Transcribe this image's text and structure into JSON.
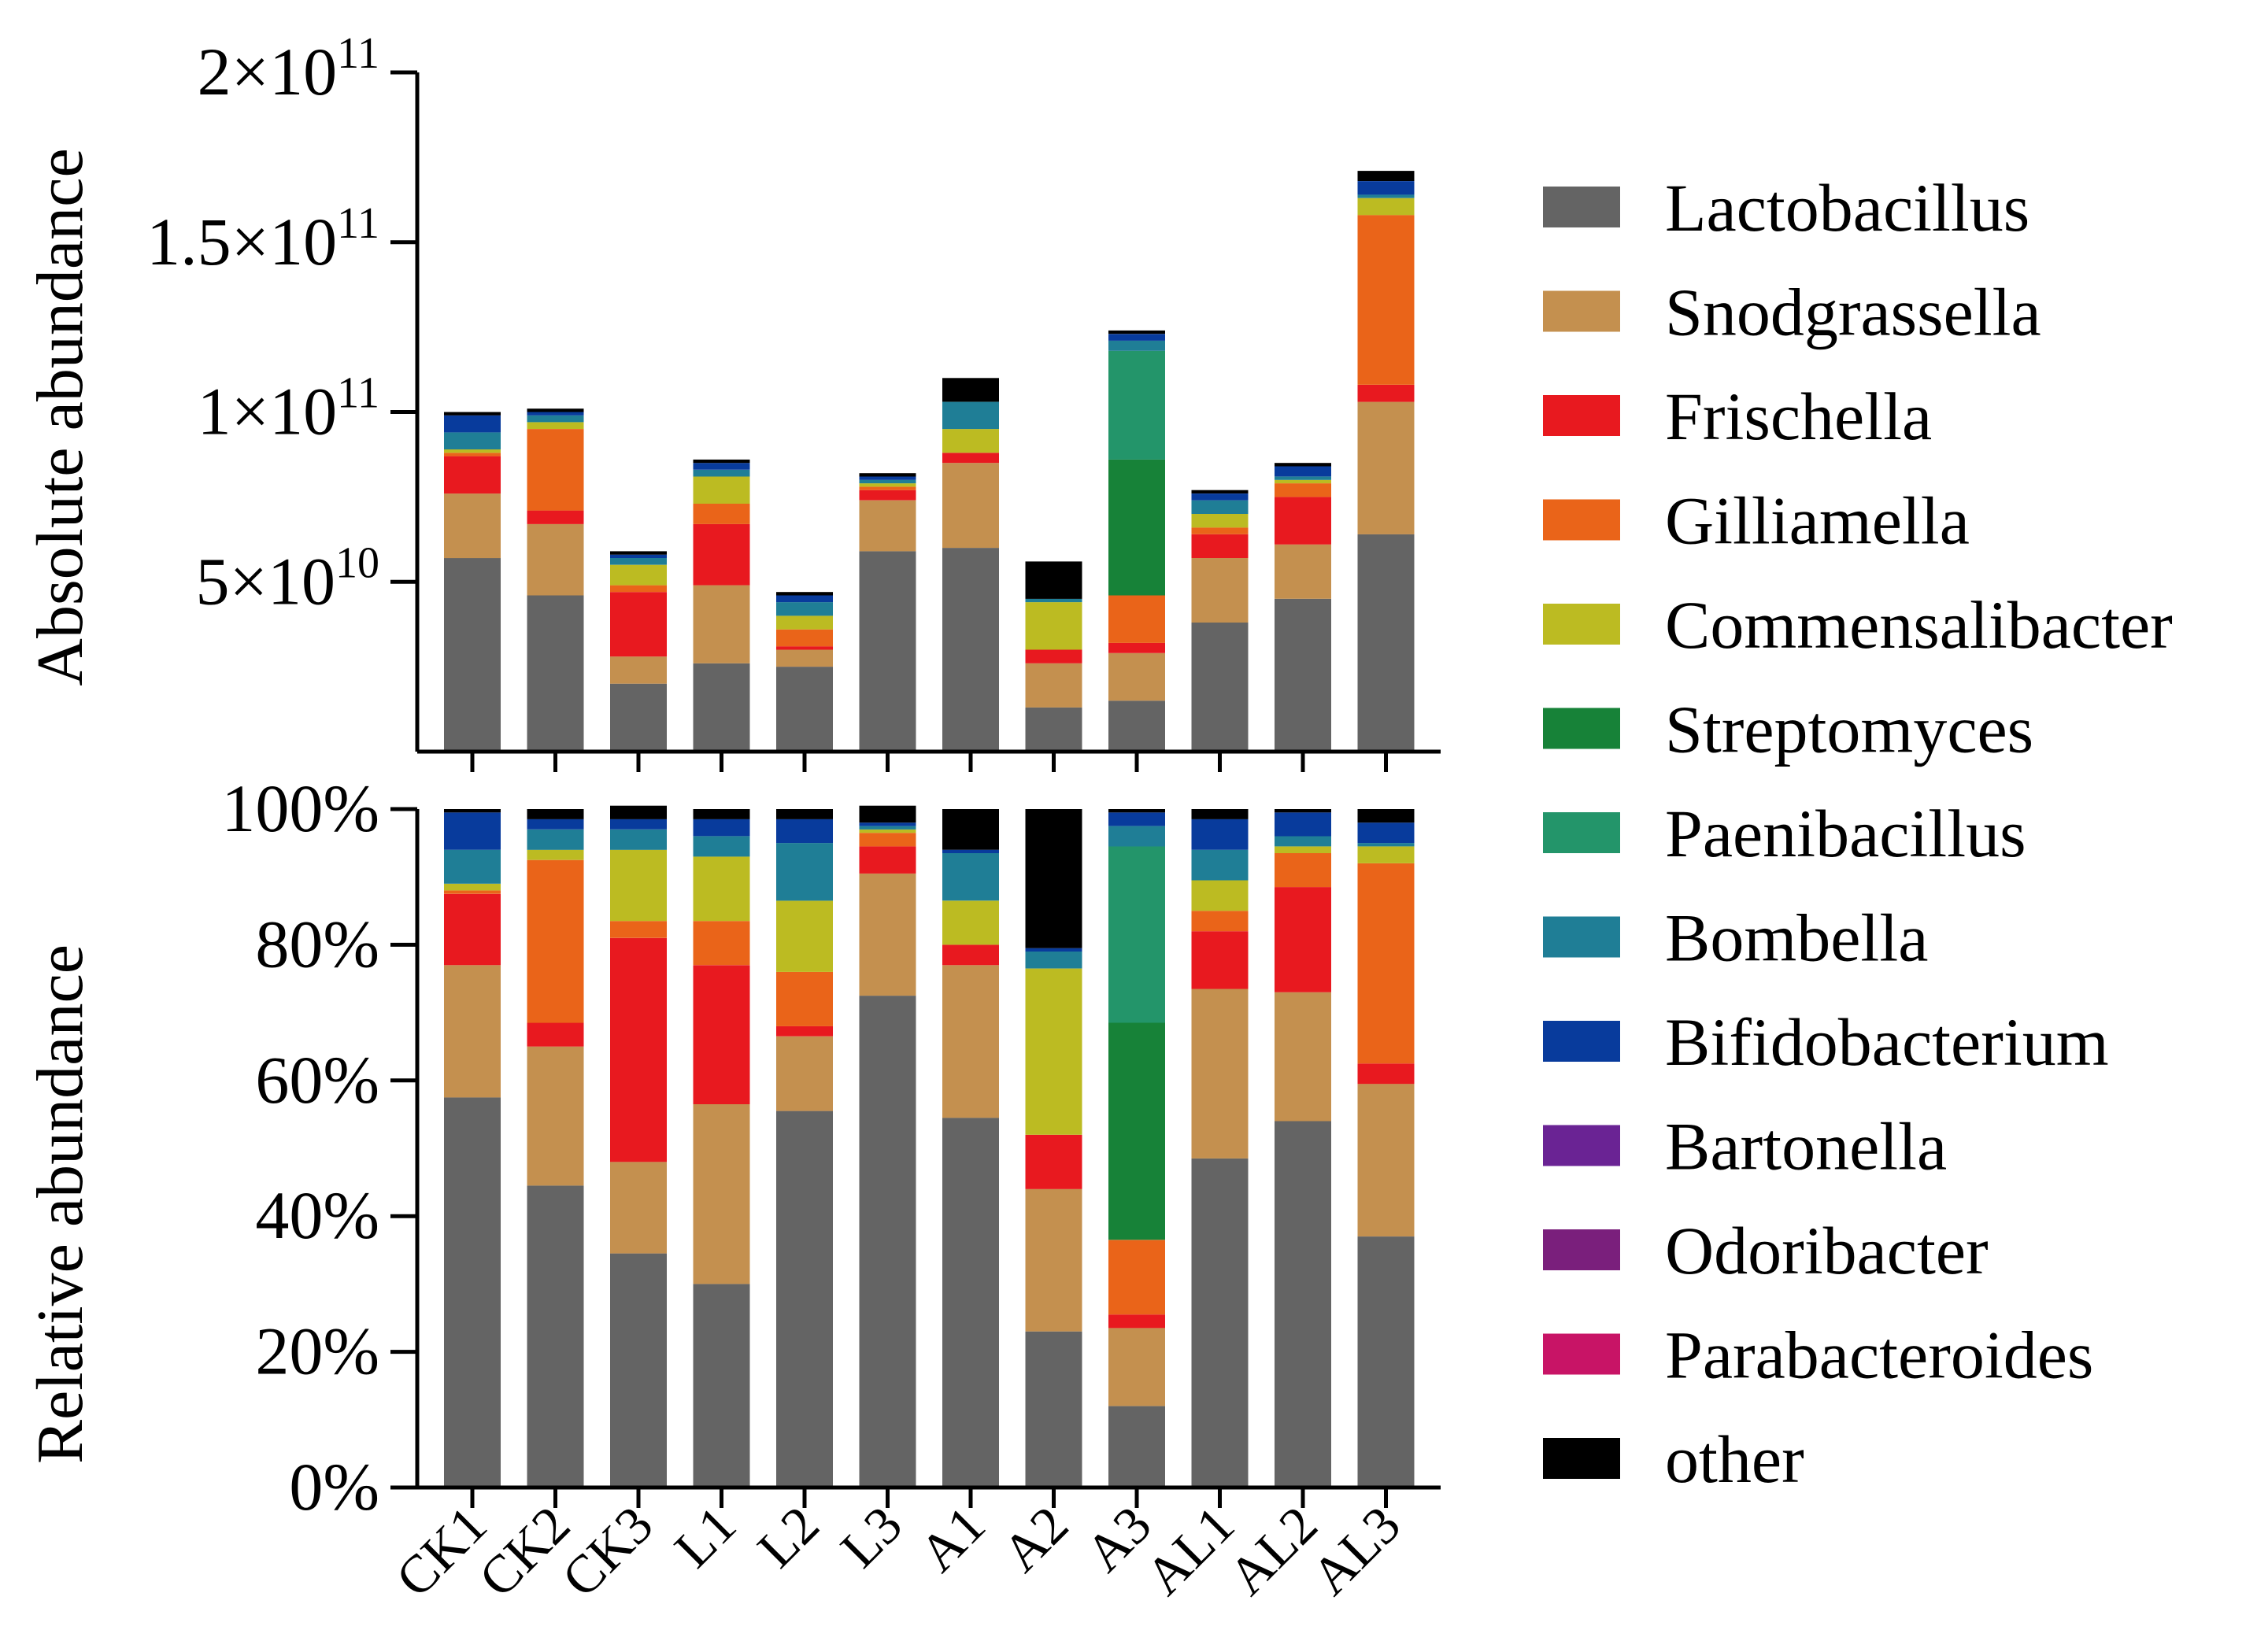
{
  "chart_data": [
    {
      "type": "bar",
      "stacked": true,
      "title": "",
      "xlabel": "",
      "ylabel": "Absolute abundance",
      "ylim": [
        0,
        200000000000
      ],
      "y_ticks": [
        {
          "value": 50000000000,
          "base": "5×10",
          "exp": "10"
        },
        {
          "value": 100000000000,
          "base": "1×10",
          "exp": "11"
        },
        {
          "value": 150000000000,
          "base": "1.5×10",
          "exp": "11"
        },
        {
          "value": 200000000000,
          "base": "2×10",
          "exp": "11"
        }
      ],
      "categories": [
        "CK1",
        "CK2",
        "CK3",
        "L1",
        "L2",
        "L3",
        "A1",
        "A2",
        "A3",
        "AL1",
        "AL2",
        "AL3"
      ],
      "series": [
        {
          "name": "Lactobacillus",
          "values": [
            57000000000.0,
            46000000000.0,
            20000000000.0,
            26000000000.0,
            25000000000.0,
            59000000000.0,
            60000000000.0,
            13000000000.0,
            15000000000.0,
            38000000000.0,
            45000000000.0,
            64000000000.0
          ]
        },
        {
          "name": "Snodgrassella",
          "values": [
            19000000000.0,
            21000000000.0,
            8000000000.0,
            23000000000.0,
            5000000000.0,
            15000000000.0,
            25000000000.0,
            13000000000.0,
            14000000000.0,
            19000000000.0,
            16000000000.0,
            39000000000.0
          ]
        },
        {
          "name": "Frischella",
          "values": [
            11000000000.0,
            4000000000.0,
            19000000000.0,
            18000000000.0,
            1000000000.0,
            3000000000.0,
            3000000000.0,
            4000000000.0,
            3000000000.0,
            7000000000.0,
            14000000000.0,
            5000000000.0
          ]
        },
        {
          "name": "Gilliamella",
          "values": [
            1000000000.0,
            24000000000.0,
            2000000000.0,
            6000000000.0,
            5000000000.0,
            1000000000.0,
            0,
            0,
            14000000000.0,
            2000000000.0,
            4000000000.0,
            50000000000.0
          ]
        },
        {
          "name": "Commensalibacter",
          "values": [
            1000000000.0,
            2000000000.0,
            6000000000.0,
            8000000000.0,
            4000000000.0,
            1000000000.0,
            7000000000.0,
            14000000000.0,
            0,
            4000000000.0,
            1000000000.0,
            5000000000.0
          ]
        },
        {
          "name": "Streptomyces",
          "values": [
            0,
            0,
            0,
            0,
            0,
            0,
            0,
            0,
            40000000000.0,
            0,
            0,
            0
          ]
        },
        {
          "name": "Paenibacillus",
          "values": [
            0,
            0,
            0,
            0,
            0,
            0,
            0,
            0,
            32000000000.0,
            0,
            0,
            0
          ]
        },
        {
          "name": "Bombella",
          "values": [
            5000000000.0,
            2000000000.0,
            2000000000.0,
            2000000000.0,
            4000000000.0,
            1000000000.0,
            8000000000.0,
            1000000000.0,
            3000000000.0,
            4000000000.0,
            1000000000.0,
            1000000000.0
          ]
        },
        {
          "name": "Bifidobacterium",
          "values": [
            5000000000.0,
            1000000000.0,
            1000000000.0,
            2000000000.0,
            2000000000.0,
            1000000000.0,
            0,
            0,
            2000000000.0,
            2000000000.0,
            3000000000.0,
            4000000000.0
          ]
        },
        {
          "name": "Bartonella",
          "values": [
            0,
            0,
            0,
            0,
            0,
            0,
            0,
            0,
            0,
            0,
            0,
            0
          ]
        },
        {
          "name": "Odoribacter",
          "values": [
            0,
            0,
            0,
            0,
            0,
            0,
            0,
            0,
            0,
            0,
            0,
            0
          ]
        },
        {
          "name": "Parabacteroides",
          "values": [
            0,
            0,
            0,
            0,
            0,
            0,
            0,
            0,
            0,
            0,
            0,
            0
          ]
        },
        {
          "name": "other",
          "values": [
            1000000000.0,
            1000000000.0,
            1000000000.0,
            1000000000.0,
            1000000000.0,
            1000000000.0,
            7000000000.0,
            11000000000.0,
            1000000000.0,
            1000000000.0,
            1000000000.0,
            3000000000.0
          ]
        }
      ]
    },
    {
      "type": "bar",
      "stacked": true,
      "title": "",
      "xlabel": "",
      "ylabel": "Relative abundance",
      "ylim": [
        0,
        100
      ],
      "y_ticks": [
        "0%",
        "20%",
        "40%",
        "60%",
        "80%",
        "100%"
      ],
      "categories": [
        "CK1",
        "CK2",
        "CK3",
        "L1",
        "L2",
        "L3",
        "A1",
        "A2",
        "A3",
        "AL1",
        "AL2",
        "AL3"
      ],
      "series": [
        {
          "name": "Lactobacillus",
          "values": [
            57.5,
            44.5,
            34.5,
            30.0,
            55.5,
            72.5,
            54.5,
            23.0,
            12.0,
            48.5,
            54.0,
            37.0
          ]
        },
        {
          "name": "Snodgrassella",
          "values": [
            19.5,
            20.5,
            13.5,
            26.5,
            11.0,
            18.0,
            22.5,
            21.0,
            11.5,
            25.0,
            19.0,
            22.5
          ]
        },
        {
          "name": "Frischella",
          "values": [
            10.5,
            3.5,
            33.0,
            20.5,
            1.5,
            4.0,
            3.0,
            8.0,
            2.0,
            8.5,
            15.5,
            3.0
          ]
        },
        {
          "name": "Gilliamella",
          "values": [
            0.5,
            24.0,
            2.5,
            6.5,
            8.0,
            2.0,
            0,
            0,
            11.0,
            3.0,
            5.0,
            29.5
          ]
        },
        {
          "name": "Commensalibacter",
          "values": [
            1.0,
            1.5,
            10.5,
            9.5,
            10.5,
            0.5,
            6.5,
            24.5,
            0,
            4.5,
            1.0,
            2.5
          ]
        },
        {
          "name": "Streptomyces",
          "values": [
            0,
            0,
            0,
            0,
            0,
            0,
            0,
            0,
            32.0,
            0,
            0,
            0
          ]
        },
        {
          "name": "Paenibacillus",
          "values": [
            0,
            0,
            0,
            0,
            0,
            0,
            0,
            0,
            26.0,
            0,
            0,
            0
          ]
        },
        {
          "name": "Bombella",
          "values": [
            5.0,
            3.0,
            3.0,
            3.0,
            8.5,
            0.5,
            7.0,
            2.5,
            3.0,
            4.5,
            1.5,
            0.5
          ]
        },
        {
          "name": "Bifidobacterium",
          "values": [
            5.5,
            1.5,
            1.5,
            2.5,
            3.5,
            0.5,
            0.5,
            0.5,
            2.0,
            4.5,
            3.5,
            3.0
          ]
        },
        {
          "name": "Bartonella",
          "values": [
            0,
            0,
            0,
            0,
            0,
            0,
            0,
            0,
            0,
            0,
            0,
            0
          ]
        },
        {
          "name": "Odoribacter",
          "values": [
            0,
            0,
            0,
            0,
            0,
            0,
            0,
            0,
            0,
            0,
            0,
            0
          ]
        },
        {
          "name": "Parabacteroides",
          "values": [
            0,
            0,
            0,
            0,
            0,
            0,
            0,
            0,
            0,
            0,
            0,
            0
          ]
        },
        {
          "name": "other",
          "values": [
            0.5,
            1.5,
            2.0,
            1.5,
            1.5,
            2.5,
            6.0,
            20.5,
            0.5,
            1.5,
            0.5,
            2.0
          ]
        }
      ]
    }
  ],
  "legend": {
    "placement": "right",
    "items": [
      {
        "name": "Lactobacillus",
        "color": "#646464"
      },
      {
        "name": "Snodgrassella",
        "color": "#c4904f"
      },
      {
        "name": "Frischella",
        "color": "#e8191f"
      },
      {
        "name": "Gilliamella",
        "color": "#ea6419"
      },
      {
        "name": "Commensalibacter",
        "color": "#bcbb22"
      },
      {
        "name": "Streptomyces",
        "color": "#178238"
      },
      {
        "name": "Paenibacillus",
        "color": "#23956a"
      },
      {
        "name": "Bombella",
        "color": "#1f7e96"
      },
      {
        "name": "Bifidobacterium",
        "color": "#083b9c"
      },
      {
        "name": "Bartonella",
        "color": "#6a2394"
      },
      {
        "name": "Odoribacter",
        "color": "#7a1f7c"
      },
      {
        "name": "Parabacteroides",
        "color": "#c81466"
      },
      {
        "name": "other",
        "color": "#000000"
      }
    ]
  }
}
